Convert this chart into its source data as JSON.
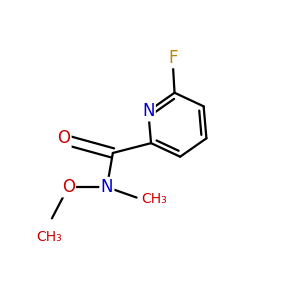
{
  "background_color": "#ffffff",
  "bond_color": "#000000",
  "bond_width": 1.6,
  "figsize": [
    3.0,
    3.0
  ],
  "dpi": 100,
  "colors": {
    "F": "#b8860b",
    "N": "#0000cc",
    "O": "#cc0000",
    "C": "#000000"
  }
}
